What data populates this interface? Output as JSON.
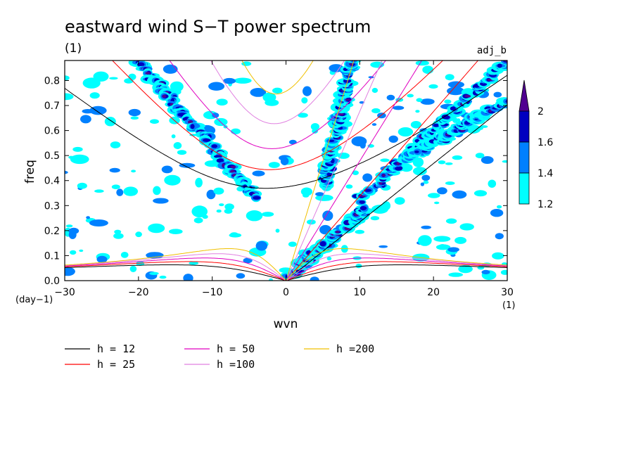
{
  "chart_data": {
    "type": "heatmap",
    "title": "eastward wind S−T power spectrum",
    "units_top_left": "(1)",
    "run_label": "adj_b",
    "xlabel": "wvn",
    "ylabel": "freq",
    "x_units": "(1)",
    "y_units": "(day−1)",
    "xlim": [
      -30,
      30
    ],
    "ylim": [
      0,
      0.88
    ],
    "x_ticks": [
      -30,
      -20,
      -10,
      0,
      10,
      20,
      30
    ],
    "x_tick_labels": [
      "−30",
      "−20",
      "−10",
      "0",
      "10",
      "20",
      "30"
    ],
    "y_ticks": [
      0.0,
      0.1,
      0.2,
      0.3,
      0.4,
      0.5,
      0.6,
      0.7,
      0.8
    ],
    "y_tick_labels": [
      "0.0",
      "0.1",
      "0.2",
      "0.3",
      "0.4",
      "0.5",
      "0.6",
      "0.7",
      "0.8"
    ],
    "colorbar": {
      "levels": [
        1.2,
        1.4,
        1.6,
        2
      ],
      "level_labels": [
        "1.2",
        "1.4",
        "1.6",
        "2"
      ],
      "colors": [
        "#00ffff",
        "#0080ff",
        "#0000c0",
        "#500090"
      ]
    },
    "dispersion_curves": [
      {
        "name": "h = 12",
        "h": 12,
        "color": "#000000"
      },
      {
        "name": "h = 25",
        "h": 25,
        "color": "#ff0000"
      },
      {
        "name": "h = 50",
        "h": 50,
        "color": "#e000c0"
      },
      {
        "name": "h =100",
        "h": 100,
        "color": "#e080e0"
      },
      {
        "name": "h =200",
        "h": 200,
        "color": "#f0c000"
      }
    ]
  }
}
